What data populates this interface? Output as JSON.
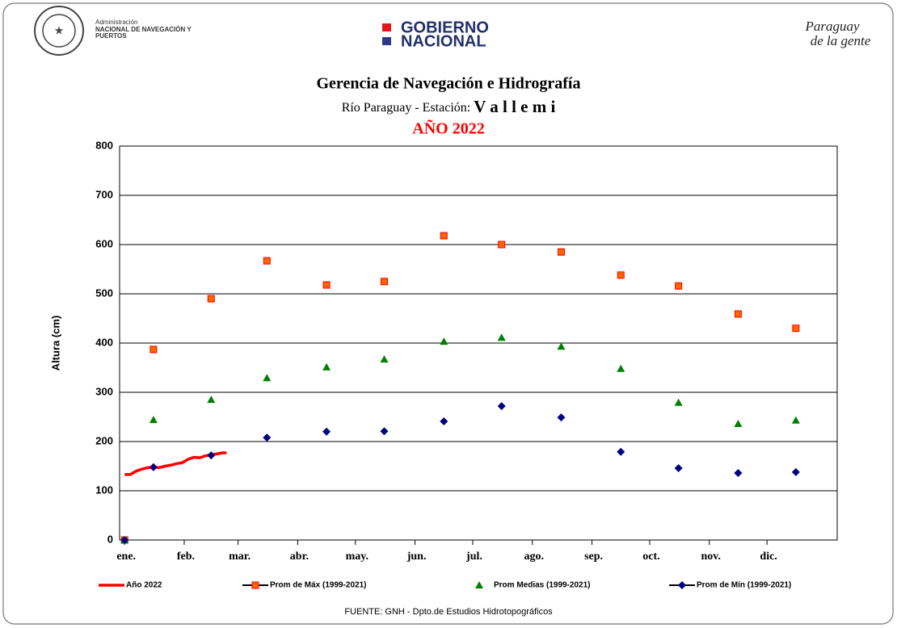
{
  "header": {
    "agency_small": "Administración",
    "agency_line1": "NACIONAL DE NAVEGACIÓN Y",
    "agency_line2": "PUERTOS",
    "gov_line1": "GOBIERNO",
    "gov_line2": "NACIONAL",
    "slogan_line1": "Paraguay",
    "slogan_line2": "de la gente"
  },
  "chart_data": {
    "type": "scatter",
    "title": "Gerencia de Navegación e Hidrografía",
    "subtitle": "Río Paraguay  -  Estación:",
    "station": "V a l l e m i",
    "year_label": "AÑO 2022",
    "y_label": "Altura (cm)",
    "source": "FUENTE:  GNH  - Dpto.de Estudios Hidrotopográficos",
    "xlim": [
      -2.6,
      370.5
    ],
    "xticks": [
      {
        "value": 0,
        "label": "ene."
      },
      {
        "value": 31,
        "label": "feb."
      },
      {
        "value": 59,
        "label": "mar."
      },
      {
        "value": 90,
        "label": "abr."
      },
      {
        "value": 120,
        "label": "may."
      },
      {
        "value": 151,
        "label": "jun."
      },
      {
        "value": 181,
        "label": "jul."
      },
      {
        "value": 212,
        "label": "ago."
      },
      {
        "value": 243,
        "label": "sep."
      },
      {
        "value": 273,
        "label": "oct."
      },
      {
        "value": 304,
        "label": "nov."
      },
      {
        "value": 334,
        "label": "dic."
      }
    ],
    "ylim": [
      0,
      800
    ],
    "yticks": [
      0,
      100,
      200,
      300,
      400,
      500,
      600,
      700,
      800
    ],
    "grid": true,
    "legend": "bottom",
    "series": [
      {
        "name": "Año 2022",
        "color": "#ff0000",
        "marker": "line",
        "x": [
          0,
          3,
          6,
          9,
          12,
          15,
          18,
          21,
          24,
          27,
          30,
          33,
          36,
          39,
          42,
          45,
          48,
          51,
          53
        ],
        "values": [
          133,
          133,
          140,
          144,
          147,
          148,
          147,
          150,
          152,
          155,
          157,
          164,
          168,
          167,
          171,
          173,
          175,
          177,
          177
        ]
      },
      {
        "name": "Prom de Máx (1999-2021)",
        "color": "#ff6600",
        "marker": "square",
        "x": [
          0,
          15,
          45,
          74,
          105,
          135,
          166,
          196,
          227,
          258,
          288,
          319,
          349
        ],
        "values": [
          0,
          387,
          490,
          567,
          518,
          525,
          618,
          600,
          585,
          538,
          516,
          459,
          430
        ]
      },
      {
        "name": "Prom Medias (1999-2021)",
        "color": "#008000",
        "marker": "triangle",
        "x": [
          0,
          15,
          45,
          74,
          105,
          135,
          166,
          196,
          227,
          258,
          288,
          319,
          349
        ],
        "values": [
          0,
          244,
          285,
          329,
          351,
          367,
          403,
          411,
          393,
          348,
          279,
          236,
          243
        ]
      },
      {
        "name": "Prom de Mín  (1999-2021)",
        "color": "#000080",
        "marker": "diamond",
        "x": [
          0,
          15,
          45,
          74,
          105,
          135,
          166,
          196,
          227,
          258,
          288,
          319,
          349
        ],
        "values": [
          0,
          148,
          172,
          208,
          220,
          221,
          241,
          272,
          249,
          179,
          146,
          136,
          138
        ]
      }
    ]
  }
}
